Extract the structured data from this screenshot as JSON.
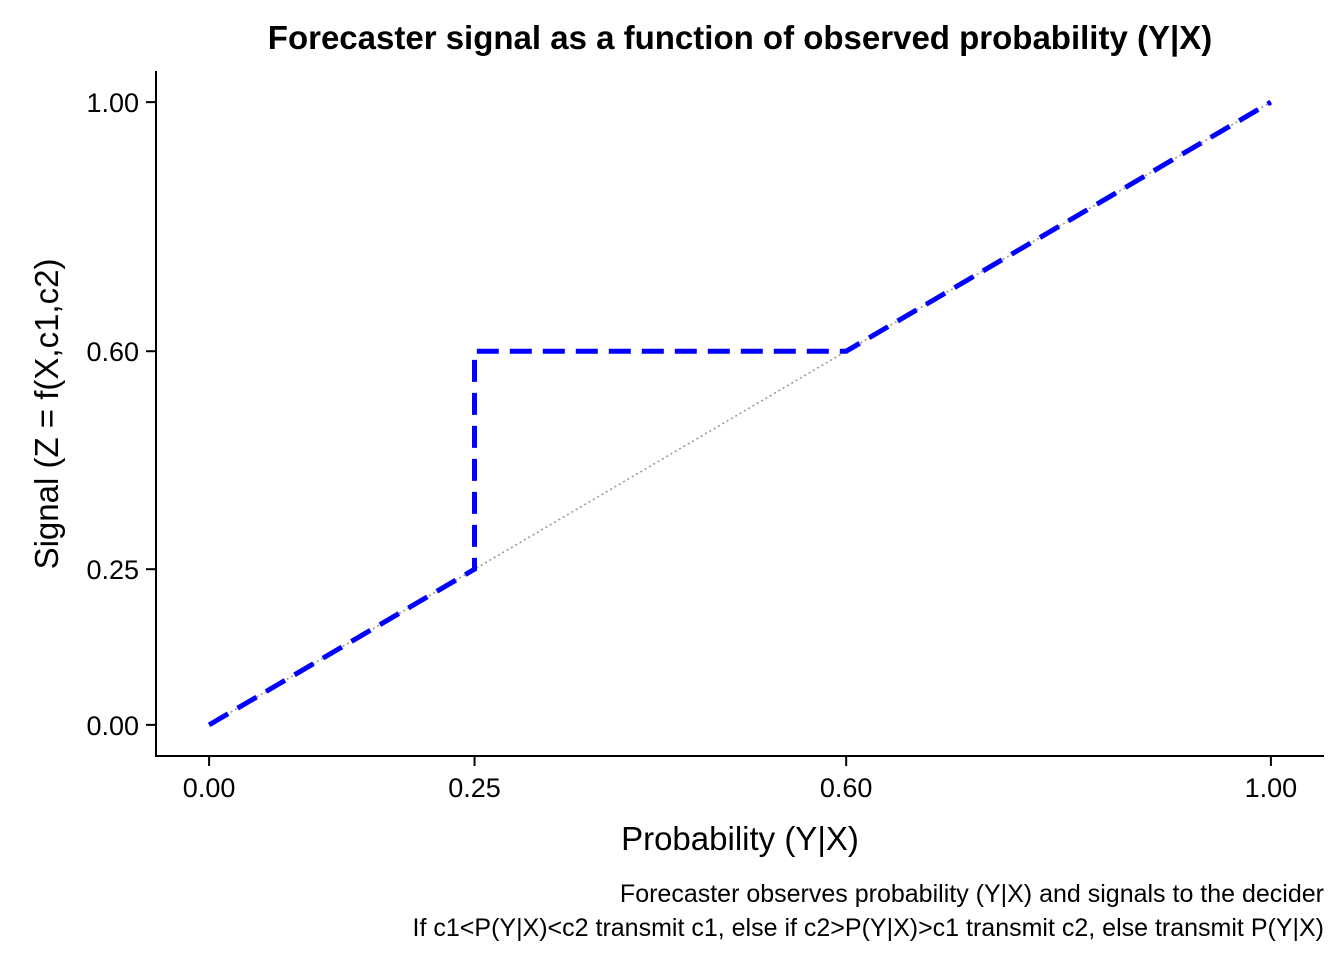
{
  "chart_data": {
    "type": "line",
    "title": "Forecaster signal as a function of observed probability (Y|X)",
    "xlabel": "Probability (Y|X)",
    "ylabel": "Signal (Z = f(X,c1,c2)",
    "caption_lines": [
      "Forecaster observes probability (Y|X) and signals to the decider",
      "If c1<P(Y|X)<c2 transmit c1, else if c2>P(Y|X)>c1 transmit c2, else transmit P(Y|X)"
    ],
    "xlim": [
      -0.05,
      1.05
    ],
    "ylim": [
      -0.05,
      1.05
    ],
    "x_ticks": [
      0,
      0.25,
      0.6,
      1
    ],
    "x_tick_labels": [
      "0.00",
      "0.25",
      "0.60",
      "1.00"
    ],
    "y_ticks": [
      0,
      0.25,
      0.6,
      1
    ],
    "y_tick_labels": [
      "0.00",
      "0.25",
      "0.60",
      "1.00"
    ],
    "grid": false,
    "legend": "none",
    "series": [
      {
        "style": "dashed",
        "color": "#0000ff",
        "x": [
          0,
          0.25,
          0.25,
          0.6,
          1
        ],
        "y": [
          0,
          0.25,
          0.6,
          0.6,
          1
        ]
      },
      {
        "style": "dotted",
        "color": "#9a9a9a",
        "x": [
          0,
          1
        ],
        "y": [
          0,
          1
        ]
      }
    ]
  }
}
